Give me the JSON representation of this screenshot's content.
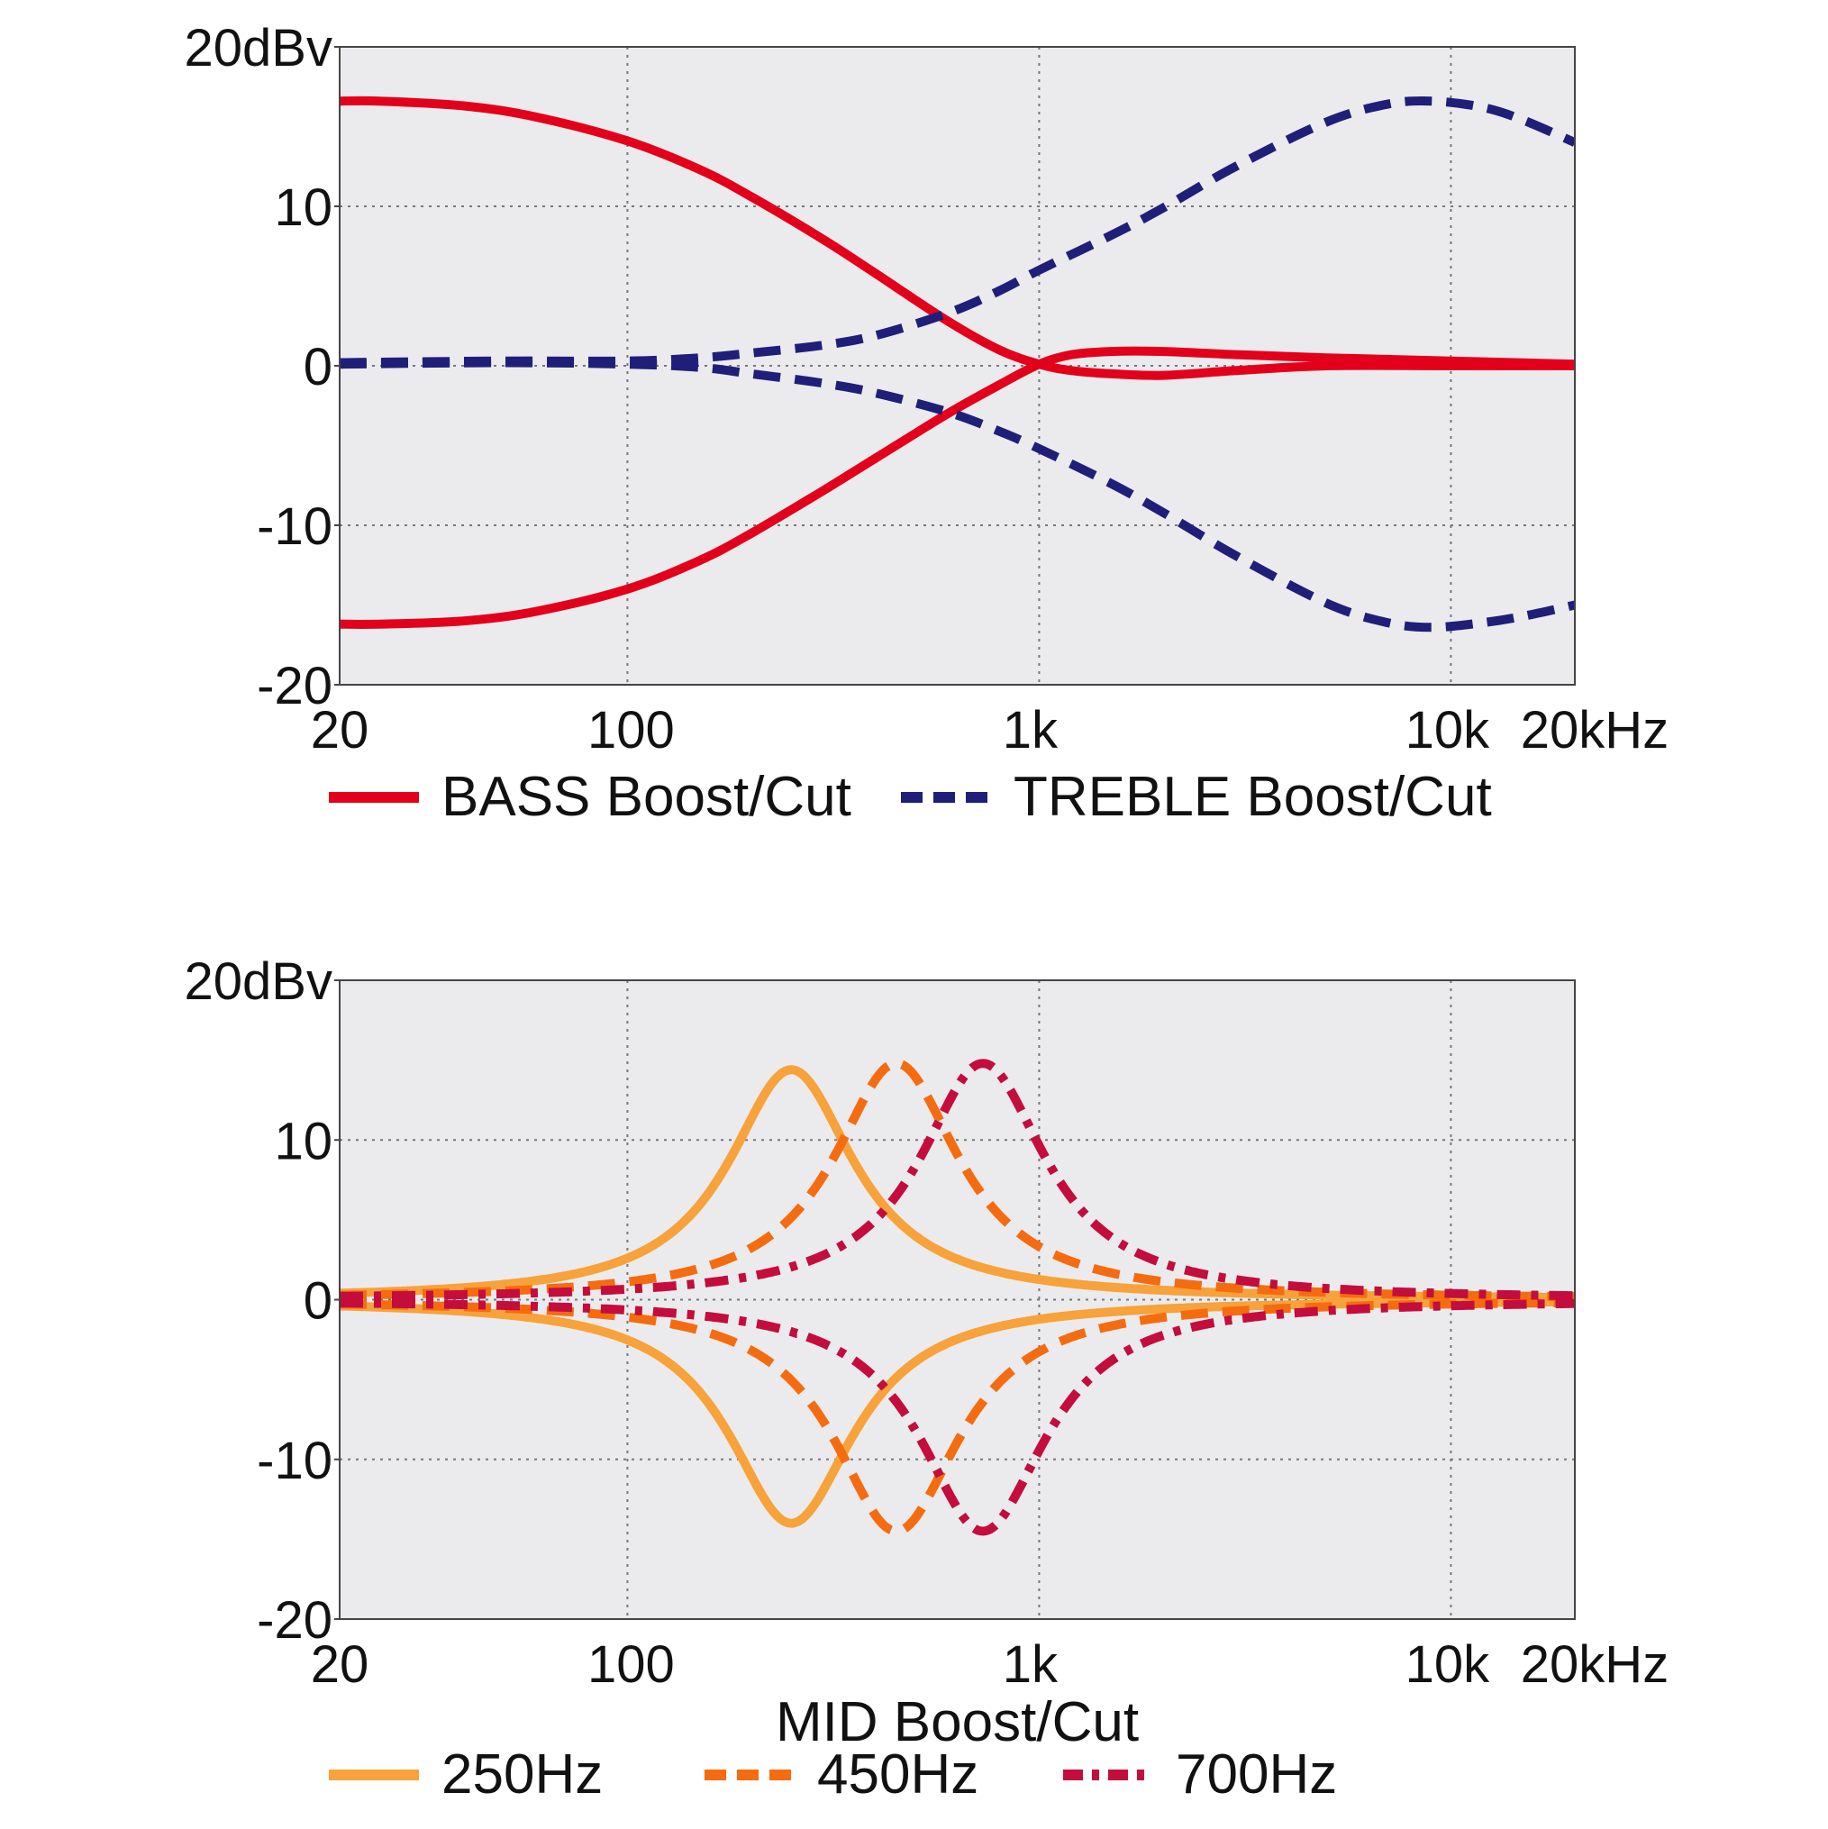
{
  "chart_data": [
    {
      "type": "line",
      "x_scale": "log",
      "xlim": [
        20,
        20000
      ],
      "ylim": [
        -20,
        20
      ],
      "grid": true,
      "legend_position": "bottom",
      "xlabel": "",
      "x_ticks": [
        {
          "value": 20,
          "label": "20"
        },
        {
          "value": 100,
          "label": "100"
        },
        {
          "value": 1000,
          "label": "1k"
        },
        {
          "value": 10000,
          "label": "10k"
        },
        {
          "value": 20000,
          "label": "20kHz"
        }
      ],
      "y_ticks": [
        {
          "value": 20,
          "label": "20dBv"
        },
        {
          "value": 10,
          "label": "10"
        },
        {
          "value": 0,
          "label": "0"
        },
        {
          "value": -10,
          "label": "-10"
        },
        {
          "value": -20,
          "label": "-20"
        }
      ],
      "legend": [
        {
          "label": "BASS Boost/Cut",
          "color": "#e3001b",
          "style": "solid"
        },
        {
          "label": "TREBLE Boost/Cut",
          "color": "#1f1f7a",
          "style": "dashed"
        }
      ],
      "series": [
        {
          "color": "#e3001b",
          "style": "solid",
          "x": [
            20,
            25,
            40,
            60,
            100,
            150,
            200,
            300,
            400,
            600,
            800,
            1000,
            1200,
            1500,
            2000,
            3000,
            5000,
            10000,
            20000
          ],
          "y": [
            16.6,
            16.6,
            16.3,
            15.6,
            14.1,
            12.3,
            10.6,
            7.9,
            5.8,
            2.8,
            1.0,
            0.1,
            -0.3,
            -0.5,
            -0.6,
            -0.3,
            0.0,
            0.0,
            0.0
          ]
        },
        {
          "color": "#e3001b",
          "style": "solid",
          "x": [
            20,
            25,
            40,
            60,
            100,
            150,
            200,
            300,
            400,
            600,
            800,
            1000,
            1200,
            1500,
            2000,
            3000,
            5000,
            10000,
            20000
          ],
          "y": [
            -16.2,
            -16.2,
            -16.0,
            -15.4,
            -14.0,
            -12.2,
            -10.5,
            -7.8,
            -5.8,
            -3.0,
            -1.2,
            0.1,
            0.7,
            0.9,
            0.9,
            0.7,
            0.5,
            0.3,
            0.1
          ]
        },
        {
          "color": "#1f1f7a",
          "style": "dashed",
          "x": [
            20,
            50,
            100,
            150,
            200,
            300,
            400,
            600,
            800,
            1000,
            1500,
            2000,
            3000,
            5000,
            7000,
            9000,
            12000,
            15000,
            20000
          ],
          "y": [
            0.2,
            0.3,
            0.3,
            0.5,
            0.8,
            1.3,
            1.9,
            3.3,
            4.7,
            6.0,
            8.2,
            9.9,
            12.5,
            15.3,
            16.4,
            16.6,
            16.2,
            15.4,
            14.0
          ]
        },
        {
          "color": "#1f1f7a",
          "style": "dashed",
          "x": [
            20,
            50,
            100,
            150,
            200,
            300,
            400,
            600,
            800,
            1000,
            1500,
            2000,
            3000,
            5000,
            7000,
            9000,
            12000,
            15000,
            20000
          ],
          "y": [
            0.1,
            0.2,
            0.1,
            -0.1,
            -0.5,
            -1.1,
            -1.7,
            -2.9,
            -4.1,
            -5.2,
            -7.4,
            -9.2,
            -11.9,
            -14.9,
            -16.1,
            -16.4,
            -16.1,
            -15.7,
            -15.0
          ]
        }
      ]
    },
    {
      "type": "line",
      "x_scale": "log",
      "xlim": [
        20,
        20000
      ],
      "ylim": [
        -20,
        20
      ],
      "grid": true,
      "legend_position": "bottom",
      "xlabel": "MID Boost/Cut",
      "x_ticks": [
        {
          "value": 20,
          "label": "20"
        },
        {
          "value": 100,
          "label": "100"
        },
        {
          "value": 1000,
          "label": "1k"
        },
        {
          "value": 10000,
          "label": "10k"
        },
        {
          "value": 20000,
          "label": "20kHz"
        }
      ],
      "y_ticks": [
        {
          "value": 20,
          "label": "20dBv"
        },
        {
          "value": 10,
          "label": "10"
        },
        {
          "value": 0,
          "label": "0"
        },
        {
          "value": -10,
          "label": "-10"
        },
        {
          "value": -20,
          "label": "-20"
        }
      ],
      "legend": [
        {
          "label": "250Hz",
          "color": "#f7a23a",
          "style": "solid"
        },
        {
          "label": "450Hz",
          "color": "#f56c10",
          "style": "dashed"
        },
        {
          "label": "700Hz",
          "color": "#c40d3c",
          "style": "dashdot"
        }
      ],
      "series": [
        {
          "color": "#f7a23a",
          "style": "solid",
          "peak": 250,
          "gain": 14.4
        },
        {
          "color": "#f7a23a",
          "style": "solid",
          "peak": 250,
          "gain": -14.0
        },
        {
          "color": "#f56c10",
          "style": "dashed",
          "peak": 450,
          "gain": 14.8
        },
        {
          "color": "#f56c10",
          "style": "dashed",
          "peak": 450,
          "gain": -14.5
        },
        {
          "color": "#c40d3c",
          "style": "dashdot",
          "peak": 730,
          "gain": 14.8
        },
        {
          "color": "#c40d3c",
          "style": "dashdot",
          "peak": 730,
          "gain": -14.5
        }
      ]
    }
  ]
}
